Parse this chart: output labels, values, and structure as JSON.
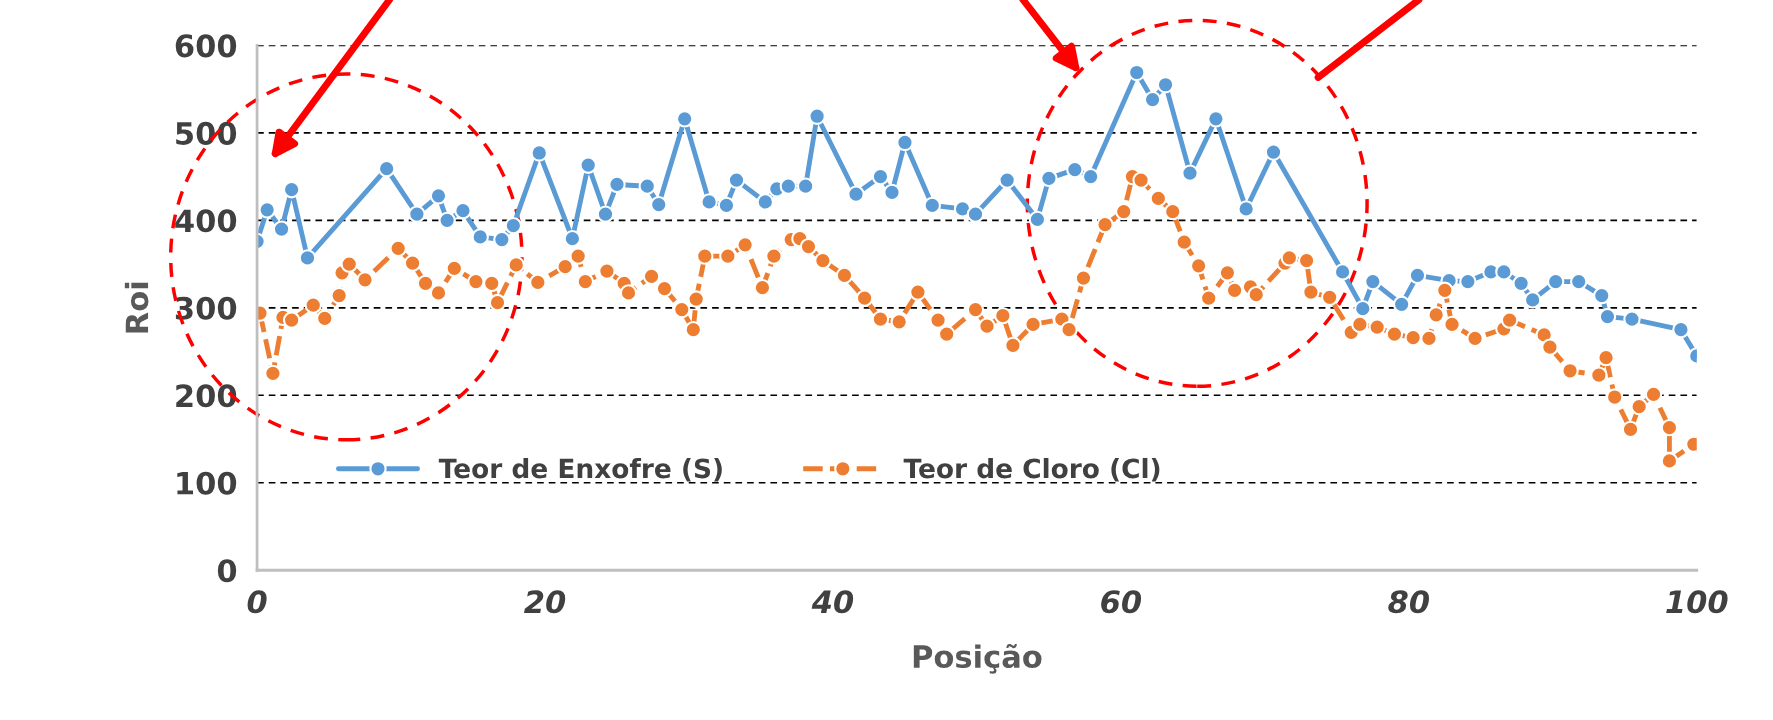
{
  "chart_data": {
    "type": "line",
    "xlabel": "Posição",
    "ylabel": "Roi",
    "xlim": [
      0,
      100
    ],
    "xticks": [
      0,
      20,
      40,
      60,
      80,
      100
    ],
    "ylim": [
      0,
      600
    ],
    "yticks": [
      0,
      100,
      200,
      300,
      400,
      500,
      600
    ],
    "grid": "y",
    "legend": "bottom",
    "marker": "circle",
    "series": [
      {
        "name": "Teor de Enxofre (S)",
        "color": "#5b9bd5",
        "line_style": "solid",
        "x": [
          0,
          0.7,
          1.7,
          2.4,
          3.5,
          9.0,
          11.1,
          12.6,
          13.2,
          14.3,
          15.5,
          17,
          17.8,
          19.6,
          21.9,
          23,
          24.2,
          25,
          27.1,
          27.9,
          29.7,
          31.4,
          32.6,
          33.3,
          35.3,
          36.1,
          36.9,
          38.1,
          38.9,
          41.6,
          43.3,
          44.1,
          45,
          46.9,
          49,
          49.9,
          52.1,
          54.2,
          55,
          56.8,
          57.9,
          61.1,
          62.2,
          63.1,
          64.8,
          66.6,
          68.7,
          70.6,
          75.4,
          76.8,
          77.5,
          79.5,
          80.6,
          82.8,
          84.1,
          85.7,
          86.6,
          87.8,
          88.6,
          90.2,
          91.8,
          93.4,
          93.8,
          95.5,
          98.9,
          100
        ],
        "values": [
          376,
          412,
          390,
          435,
          357,
          459,
          407,
          428,
          400,
          411,
          381,
          378,
          394,
          477,
          379,
          463,
          407,
          441,
          439,
          418,
          516,
          421,
          417,
          446,
          421,
          436,
          439,
          439,
          519,
          430,
          450,
          432,
          489,
          417,
          413,
          407,
          446,
          401,
          448,
          458,
          450,
          569,
          538,
          555,
          454,
          516,
          413,
          478,
          341,
          299,
          330,
          304,
          337,
          331,
          330,
          341,
          341,
          328,
          309,
          330,
          330,
          314,
          290,
          287,
          275,
          245
        ]
      },
      {
        "name": "Teor de Cloro (Cl)",
        "color": "#ed7d31",
        "line_style": "dashed",
        "x": [
          0.2,
          1.1,
          1.8,
          2.4,
          3.9,
          4.7,
          5.7,
          5.9,
          6.4,
          7.5,
          9.8,
          10.8,
          11.7,
          12.6,
          13.7,
          15.2,
          16.3,
          16.7,
          18,
          19.5,
          21.4,
          22.3,
          22.8,
          24.3,
          25.5,
          25.8,
          27.4,
          28.3,
          29.5,
          30.3,
          30.5,
          31.1,
          32.7,
          33.9,
          35.1,
          35.9,
          37.1,
          37.7,
          38.3,
          39.3,
          40.8,
          42.2,
          43.3,
          44.6,
          45.9,
          47.3,
          47.9,
          49.9,
          50.7,
          51.8,
          52.5,
          53.9,
          55.9,
          56.4,
          57.4,
          58.9,
          60.2,
          60.8,
          61.4,
          62.6,
          63.6,
          64.4,
          65.4,
          66.1,
          67.4,
          67.9,
          69,
          69.4,
          71.4,
          71.7,
          72.9,
          73.2,
          74.5,
          76,
          76.6,
          77.8,
          79,
          80.3,
          81.4,
          81.9,
          82.5,
          83,
          84.6,
          86.6,
          87,
          89.4,
          89.8,
          91.2,
          93.2,
          93.7,
          94.3,
          95.4,
          96,
          97,
          98.1,
          98.1,
          99.8
        ],
        "values": [
          294,
          225,
          289,
          286,
          303,
          288,
          314,
          340,
          350,
          332,
          368,
          351,
          328,
          317,
          345,
          330,
          328,
          306,
          349,
          329,
          347,
          359,
          330,
          342,
          328,
          317,
          336,
          322,
          298,
          275,
          310,
          359,
          359,
          372,
          323,
          359,
          378,
          379,
          370,
          354,
          337,
          311,
          287,
          284,
          318,
          286,
          270,
          298,
          279,
          291,
          257,
          281,
          287,
          275,
          334,
          395,
          410,
          450,
          446,
          425,
          410,
          375,
          348,
          311,
          340,
          320,
          324,
          315,
          351,
          357,
          354,
          318,
          312,
          272,
          281,
          278,
          270,
          266,
          265,
          292,
          320,
          281,
          265,
          276,
          286,
          269,
          255,
          228,
          223,
          243,
          198,
          161,
          187,
          201,
          163,
          125,
          144
        ]
      }
    ]
  }
}
